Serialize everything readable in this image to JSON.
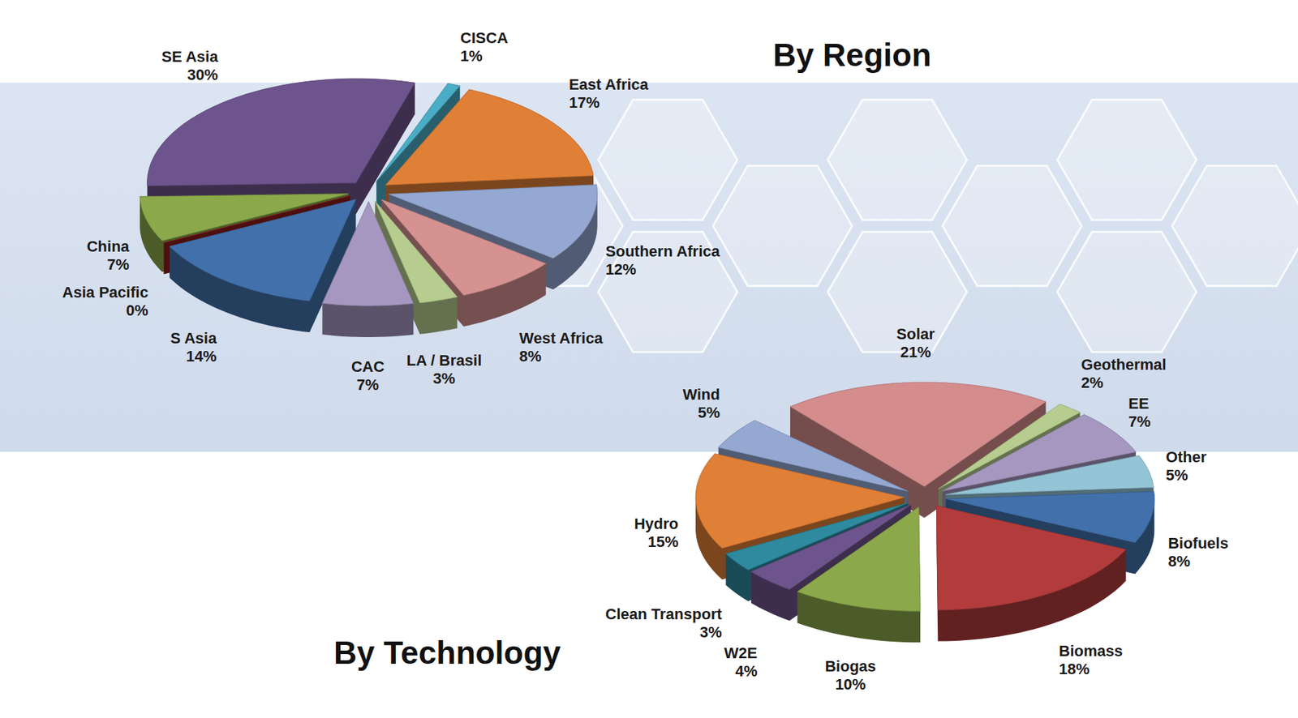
{
  "chart_data": [
    {
      "type": "pie",
      "title": "By Region",
      "categories": [
        "CISCA",
        "East Africa",
        "Southern Africa",
        "West Africa",
        "LA / Brasil",
        "CAC",
        "S Asia",
        "Asia Pacific",
        "China",
        "SE Asia"
      ],
      "values": [
        1,
        17,
        12,
        8,
        3,
        7,
        14,
        0,
        7,
        30
      ],
      "value_labels": [
        "1%",
        "17%",
        "12%",
        "8%",
        "3%",
        "7%",
        "14%",
        "0%",
        "7%",
        "30%"
      ],
      "colors": [
        "#4BACC6",
        "#E07F36",
        "#94A8D2",
        "#D69191",
        "#B6CD8F",
        "#A597BF",
        "#4270AA",
        "#8C1C1C",
        "#8BA84B",
        "#6E548C"
      ],
      "data_labels": true
    },
    {
      "type": "pie",
      "title": "By Technology",
      "categories": [
        "Solar",
        "Geothermal",
        "EE",
        "Other",
        "Biofuels",
        "Biomass",
        "Biogas",
        "W2E",
        "Clean Transport",
        "Hydro",
        "Wind"
      ],
      "values": [
        21,
        2,
        7,
        5,
        8,
        18,
        10,
        4,
        3,
        15,
        5
      ],
      "value_labels": [
        "21%",
        "2%",
        "7%",
        "5%",
        "8%",
        "18%",
        "10%",
        "4%",
        "3%",
        "15%",
        "5%"
      ],
      "colors": [
        "#D48C8C",
        "#B6CD8F",
        "#A597BF",
        "#93C5D6",
        "#4270AA",
        "#B23C3C",
        "#8BA84B",
        "#6E548C",
        "#2E8A9E",
        "#E07F36",
        "#94A8D2"
      ],
      "data_labels": true
    }
  ]
}
